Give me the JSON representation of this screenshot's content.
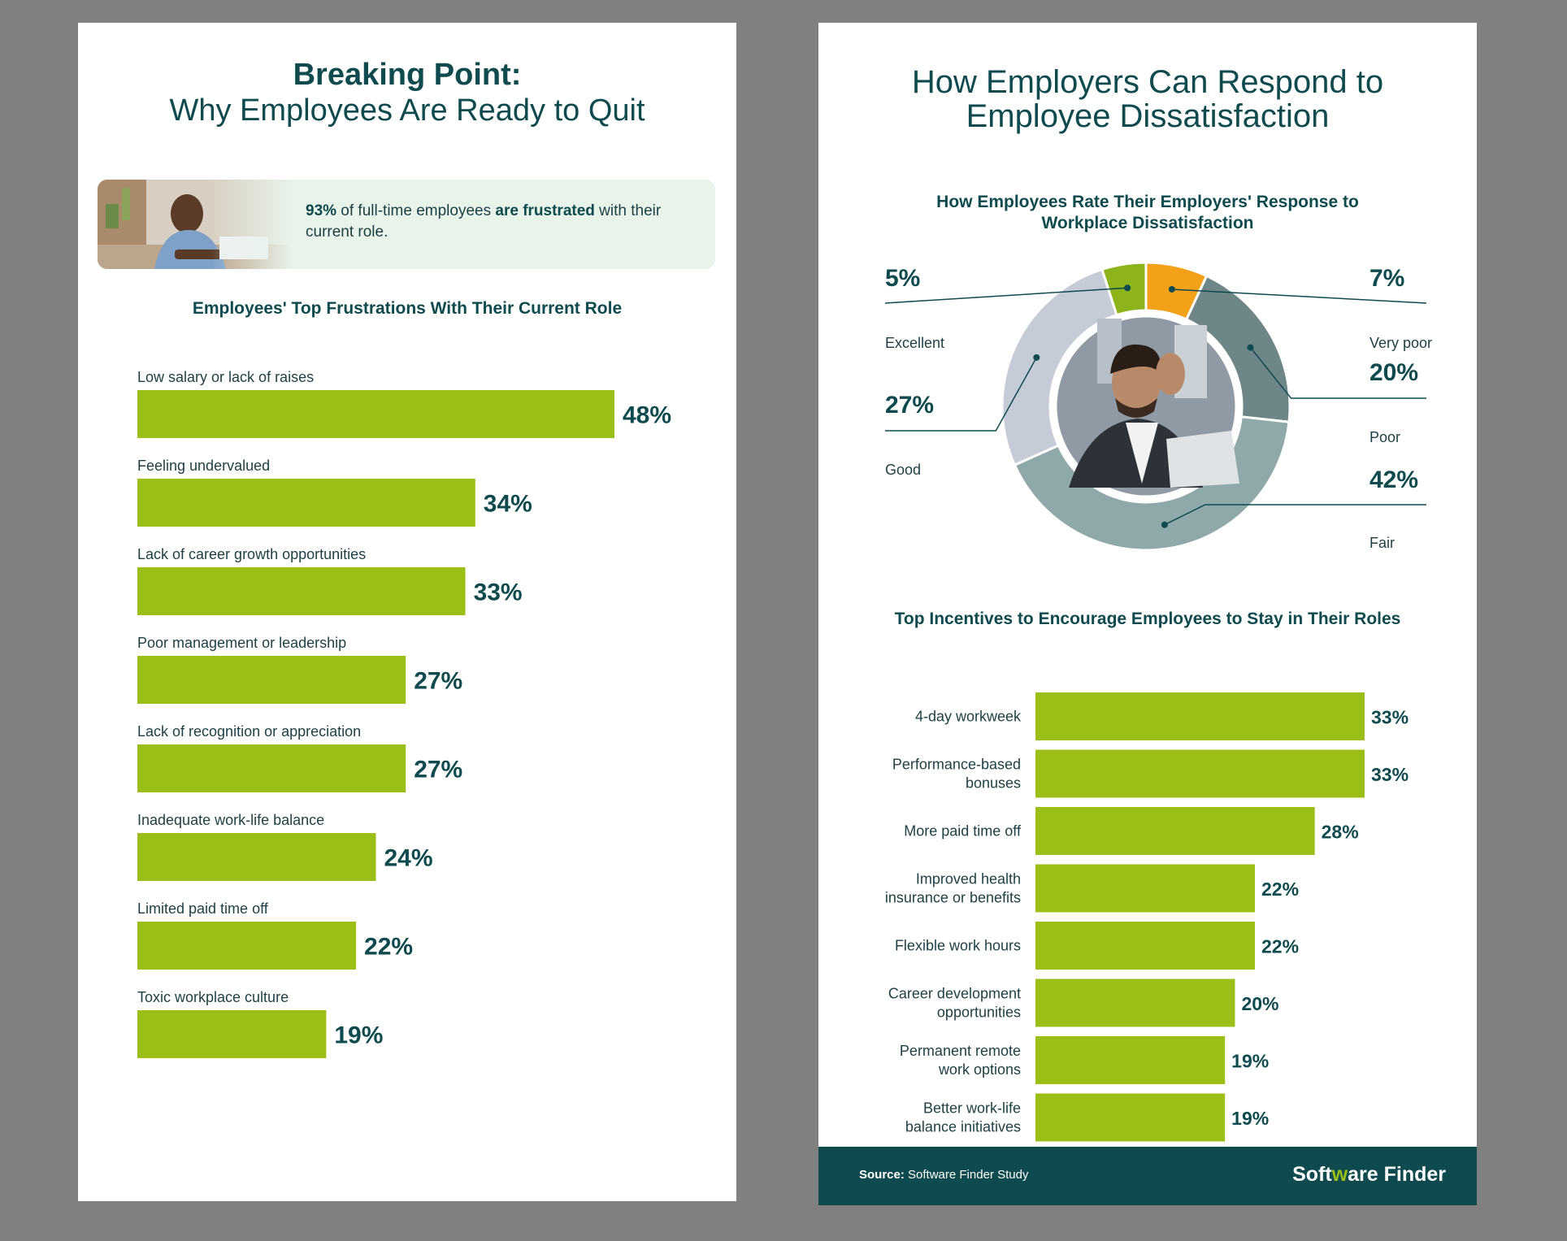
{
  "left_panel": {
    "title_bold": "Breaking Point:",
    "title_regular": "Why Employees Are Ready to Quit",
    "callout": {
      "stat": "93%",
      "text_1": " of full-time employees ",
      "text_bold": "are frustrated",
      "text_2": " with their current role."
    }
  },
  "right_panel": {
    "title_line1": "How Employers Can Respond to",
    "title_line2": "Employee Dissatisfaction",
    "footer": {
      "source_label": "Source:",
      "source_text": " Software Finder Study",
      "logo_a": "Soft",
      "logo_w": "w",
      "logo_b": "are Finder"
    }
  },
  "colors": {
    "bar": "#9bbf16",
    "dark_teal": "#0e4a4e",
    "excellent": "#8db41a",
    "very_poor": "#f4a11a",
    "poor": "#6e8688",
    "fair": "#8fa9aa",
    "good": "#c5ccd8"
  },
  "chart_data": [
    {
      "type": "bar",
      "orientation": "horizontal",
      "title": "Employees' Top Frustrations With Their Current Role",
      "categories": [
        "Low salary or lack of raises",
        "Feeling undervalued",
        "Lack of career growth opportunities",
        "Poor management or leadership",
        "Lack of recognition or appreciation",
        "Inadequate work-life balance",
        "Limited paid time off",
        "Toxic workplace culture"
      ],
      "values": [
        48,
        34,
        33,
        27,
        27,
        24,
        22,
        19
      ],
      "labels": [
        "48%",
        "34%",
        "33%",
        "27%",
        "27%",
        "24%",
        "22%",
        "19%"
      ],
      "unit": "%",
      "xlim": [
        0,
        48
      ]
    },
    {
      "type": "pie",
      "donut": true,
      "title": "How Employees Rate Their Employers' Response to Workplace Dissatisfaction",
      "title_line1": "How Employees Rate Their Employers' Response to",
      "title_line2": "Workplace Dissatisfaction",
      "slices": [
        {
          "name": "Excellent",
          "value": 5,
          "label": "5%"
        },
        {
          "name": "Very poor",
          "value": 7,
          "label": "7%"
        },
        {
          "name": "Poor",
          "value": 20,
          "label": "20%"
        },
        {
          "name": "Fair",
          "value": 42,
          "label": "42%"
        },
        {
          "name": "Good",
          "value": 27,
          "label": "27%"
        }
      ]
    },
    {
      "type": "bar",
      "orientation": "horizontal",
      "title": "Top Incentives to Encourage Employees to Stay in Their Roles",
      "categories": [
        [
          "4-day workweek"
        ],
        [
          "Performance-based",
          "bonuses"
        ],
        [
          "More paid time off"
        ],
        [
          "Improved health",
          "insurance or benefits"
        ],
        [
          "Flexible work hours"
        ],
        [
          "Career development",
          "opportunities"
        ],
        [
          "Permanent remote",
          "work options"
        ],
        [
          "Better work-life",
          "balance initiatives"
        ]
      ],
      "values": [
        33,
        33,
        28,
        22,
        22,
        20,
        19,
        19
      ],
      "labels": [
        "33%",
        "33%",
        "28%",
        "22%",
        "22%",
        "20%",
        "19%",
        "19%"
      ],
      "unit": "%",
      "xlim": [
        0,
        33
      ]
    }
  ]
}
